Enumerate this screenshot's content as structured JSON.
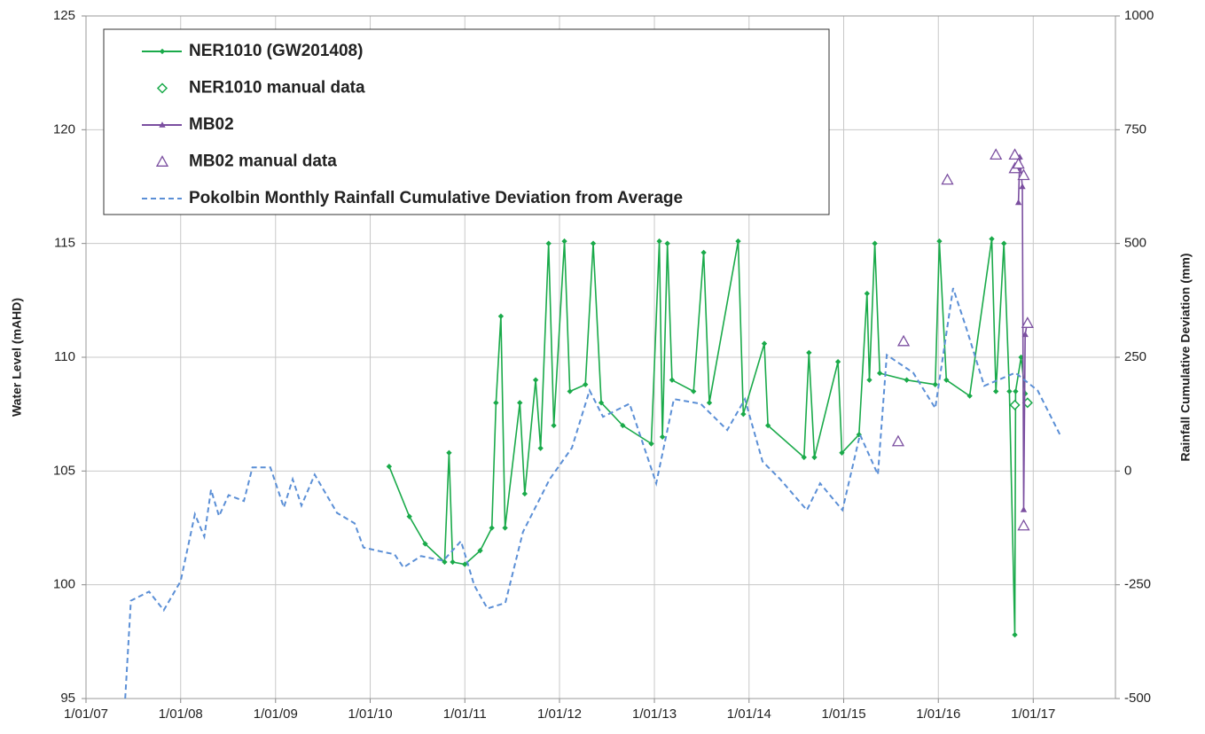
{
  "chart_data": {
    "type": "line",
    "ylabel": "Water Level (mAHD)",
    "y2label": "Rainfall Cumulative Deviation (mm)",
    "xlim": [
      "2007-01-01",
      "2017-11-14"
    ],
    "xticks": [
      {
        "value": "2007-01-01",
        "label": "1/01/07"
      },
      {
        "value": "2008-01-01",
        "label": "1/01/08"
      },
      {
        "value": "2009-01-01",
        "label": "1/01/09"
      },
      {
        "value": "2010-01-01",
        "label": "1/01/10"
      },
      {
        "value": "2011-01-01",
        "label": "1/01/11"
      },
      {
        "value": "2012-01-01",
        "label": "1/01/12"
      },
      {
        "value": "2013-01-01",
        "label": "1/01/13"
      },
      {
        "value": "2014-01-01",
        "label": "1/01/14"
      },
      {
        "value": "2015-01-01",
        "label": "1/01/15"
      },
      {
        "value": "2016-01-01",
        "label": "1/01/16"
      },
      {
        "value": "2017-01-01",
        "label": "1/01/17"
      }
    ],
    "ylim": [
      95,
      125
    ],
    "yticks": [
      95,
      100,
      105,
      110,
      115,
      120,
      125
    ],
    "y2lim": [
      -500,
      1000
    ],
    "y2ticks": [
      -500,
      -250,
      0,
      250,
      500,
      750,
      1000
    ],
    "grid": true,
    "legend": "upper left",
    "series": [
      {
        "name": "NER1010 (GW201408)",
        "color": "#1aaa4a",
        "style": "line",
        "marker": "diamond",
        "x": [
          "2010-03-15",
          "2010-06-01",
          "2010-08-01",
          "2010-10-15",
          "2010-11-01",
          "2010-11-15",
          "2011-01-01",
          "2011-03-01",
          "2011-04-15",
          "2011-05-01",
          "2011-05-20",
          "2011-06-05",
          "2011-08-01",
          "2011-08-20",
          "2011-10-01",
          "2011-10-20",
          "2011-11-20",
          "2011-12-10",
          "2012-01-20",
          "2012-02-10",
          "2012-04-10",
          "2012-05-10",
          "2012-06-10",
          "2012-09-01",
          "2012-12-20",
          "2013-01-20",
          "2013-02-01",
          "2013-02-20",
          "2013-03-10",
          "2013-06-01",
          "2013-07-10",
          "2013-08-01",
          "2013-11-20",
          "2013-12-10",
          "2014-03-01",
          "2014-03-15",
          "2014-08-01",
          "2014-08-20",
          "2014-09-10",
          "2014-12-10",
          "2014-12-25",
          "2015-03-01",
          "2015-04-01",
          "2015-04-10",
          "2015-05-01",
          "2015-05-20",
          "2015-09-01",
          "2015-12-20",
          "2016-01-05",
          "2016-02-01",
          "2016-05-01",
          "2016-07-25",
          "2016-08-10",
          "2016-09-10",
          "2016-10-01",
          "2016-10-22",
          "2016-10-25",
          "2016-11-15",
          "2016-12-01"
        ],
        "values": [
          105.2,
          103.0,
          101.8,
          101.0,
          105.8,
          101.0,
          100.9,
          101.5,
          102.5,
          108.0,
          111.8,
          102.5,
          108.0,
          104.0,
          109.0,
          106.0,
          115.0,
          107.0,
          115.1,
          108.5,
          108.8,
          115.0,
          108.0,
          107.0,
          106.2,
          115.1,
          106.5,
          115.0,
          109.0,
          108.5,
          114.6,
          108.0,
          115.1,
          107.5,
          110.6,
          107.0,
          105.6,
          110.2,
          105.6,
          109.8,
          105.8,
          106.6,
          112.8,
          109.0,
          115.0,
          109.3,
          109.0,
          108.8,
          115.1,
          109.0,
          108.3,
          115.2,
          108.5,
          115.0,
          108.5,
          97.8,
          108.5,
          110.0,
          108.4
        ]
      },
      {
        "name": "NER1010 manual data",
        "color": "#1aaa4a",
        "style": "none",
        "marker": "open-diamond",
        "x": [
          "2016-10-22",
          "2016-12-10"
        ],
        "values": [
          107.9,
          108.0
        ]
      },
      {
        "name": "MB02",
        "color": "#7b4fa0",
        "style": "line",
        "marker": "triangle",
        "x": [
          "2016-11-05",
          "2016-11-10",
          "2016-11-20",
          "2016-11-25",
          "2016-12-01",
          "2016-12-10"
        ],
        "values": [
          116.8,
          118.8,
          117.5,
          103.3,
          111.0,
          111.6
        ]
      },
      {
        "name": "MB02 manual data",
        "color": "#7b4fa0",
        "style": "none",
        "marker": "open-triangle",
        "x": [
          "2015-07-30",
          "2015-08-20",
          "2016-02-05",
          "2016-08-10",
          "2016-10-22",
          "2016-10-22",
          "2016-11-05",
          "2016-11-25",
          "2016-11-25",
          "2016-12-10"
        ],
        "values": [
          106.3,
          110.7,
          117.8,
          118.9,
          118.9,
          118.3,
          118.5,
          118.0,
          102.6,
          111.5
        ]
      },
      {
        "name": "Pokolbin Monthly Rainfall Cumulative Deviation from Average",
        "color": "#5b8fd6",
        "style": "dashed",
        "marker": "none",
        "axis": "y2",
        "x": [
          "2007-06-01",
          "2007-06-23",
          "2007-09-01",
          "2007-10-28",
          "2008-01-01",
          "2008-02-25",
          "2008-04-01",
          "2008-04-27",
          "2008-05-28",
          "2008-07-04",
          "2008-09-01",
          "2008-10-04",
          "2008-12-12",
          "2009-02-02",
          "2009-03-08",
          "2009-04-11",
          "2009-06-01",
          "2009-08-26",
          "2009-11-02",
          "2009-12-06",
          "2010-02-13",
          "2010-04-05",
          "2010-05-09",
          "2010-07-16",
          "2010-10-10",
          "2010-12-17",
          "2011-02-06",
          "2011-03-29",
          "2011-06-06",
          "2011-08-13",
          "2011-11-24",
          "2012-02-18",
          "2012-04-26",
          "2012-06-17",
          "2012-09-27",
          "2013-01-08",
          "2013-03-17",
          "2013-06-28",
          "2013-10-09",
          "2013-12-16",
          "2014-02-22",
          "2014-05-01",
          "2014-08-12",
          "2014-10-02",
          "2014-12-27",
          "2015-03-05",
          "2015-05-13",
          "2015-06-16",
          "2015-09-26",
          "2015-12-20",
          "2016-02-27",
          "2016-04-18",
          "2016-06-26",
          "2016-10-24",
          "2017-01-18",
          "2017-04-14"
        ],
        "values": [
          -500,
          -285,
          -265,
          -306,
          -242,
          -95,
          -144,
          -41,
          -99,
          -53,
          -66,
          8,
          8,
          -80,
          -18,
          -76,
          -8,
          -92,
          -115,
          -168,
          -177,
          -183,
          -212,
          -187,
          -197,
          -154,
          -251,
          -302,
          -290,
          -134,
          -18,
          51,
          177,
          119,
          148,
          -27,
          158,
          148,
          90,
          158,
          21,
          -18,
          -86,
          -27,
          -86,
          80,
          -8,
          255,
          216,
          138,
          402,
          314,
          187,
          216,
          177,
          80
        ]
      }
    ]
  }
}
